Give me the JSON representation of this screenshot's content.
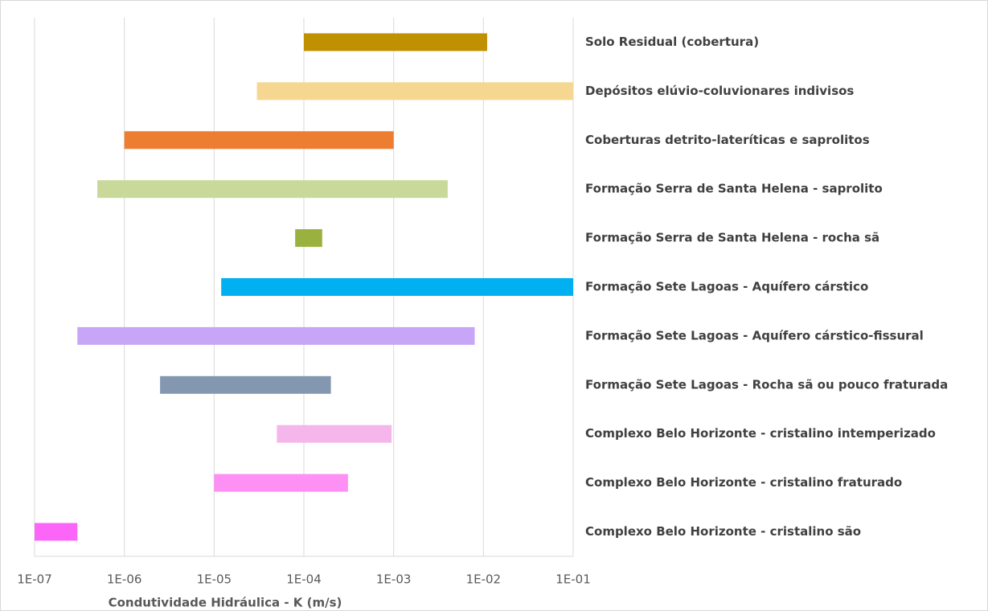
{
  "chart_data": {
    "type": "range_bar",
    "x_label": "Condutividade Hidráulica - K (m/s)",
    "categories": [
      "Solo Residual (cobertura)",
      "Depósitos elúvio-coluvionares indivisos",
      "Coberturas detrito-lateríticas e saprolitos",
      "Formação Serra de Santa Helena - saprolito",
      "Formação Serra de Santa Helena - rocha sã",
      "Formação Sete Lagoas - Aquífero cárstico",
      "Formação Sete Lagoas - Aquífero cárstico-fissural",
      "Formação Sete Lagoas - Rocha sã ou pouco fraturada",
      "Complexo Belo Horizonte - cristalino intemperizado",
      "Complexo Belo Horizonte - cristalino fraturado",
      "Complexo Belo Horizonte - cristalino são"
    ],
    "low": [
      0.0001,
      3e-05,
      1e-06,
      5e-07,
      8e-05,
      1.2e-05,
      3e-07,
      2.5e-06,
      5e-05,
      1e-05,
      1e-07
    ],
    "high": [
      0.011,
      0.1,
      0.001,
      0.004,
      0.00016,
      0.1,
      0.008,
      0.0002,
      0.00095,
      0.00031,
      3e-07
    ],
    "colors": [
      "#bf9000",
      "#f5d791",
      "#ed7d31",
      "#c9d99a",
      "#9ab13f",
      "#00b0f0",
      "#c8a6f7",
      "#8497b0",
      "#f5b6ec",
      "#fd8ff5",
      "#fb66f8"
    ],
    "xscale": "log",
    "xlim": [
      1e-07,
      0.1
    ],
    "xticks": [
      {
        "value": 1e-07,
        "label": "1E-07"
      },
      {
        "value": 1e-06,
        "label": "1E-06"
      },
      {
        "value": 1e-05,
        "label": "1E-05"
      },
      {
        "value": 0.0001,
        "label": "1E-04"
      },
      {
        "value": 0.001,
        "label": "1E-03"
      },
      {
        "value": 0.01,
        "label": "1E-02"
      },
      {
        "value": 0.1,
        "label": "1E-01"
      }
    ],
    "grid": true
  }
}
